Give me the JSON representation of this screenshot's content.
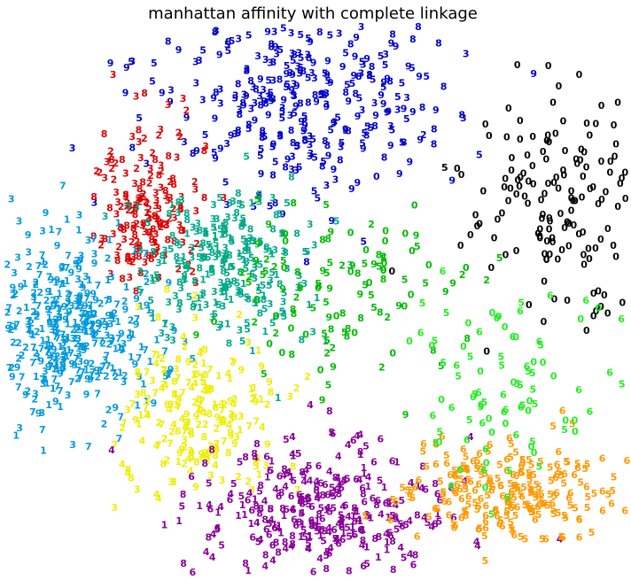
{
  "chart_data": {
    "type": "scatter",
    "title": "manhattan affinity with complete linkage",
    "xlabel": "",
    "ylabel": "",
    "axes_visible": false,
    "grid": false,
    "legend": "none",
    "marker": "digit label (0-9) drawn as colored text",
    "xlim": [
      0,
      712
    ],
    "ylim": [
      0,
      655
    ],
    "clusters": [
      {
        "color": "#000000",
        "digits": [
          "0"
        ],
        "region": {
          "cx": 630,
          "cy": 235,
          "sx": 55,
          "sy": 65
        },
        "approx_points": 150,
        "outliers": [
          [
            570,
            126,
            "0"
          ],
          [
            548,
            157,
            "0"
          ],
          [
            583,
            140,
            "0"
          ],
          [
            498,
            193,
            "5"
          ],
          [
            512,
            194,
            "0"
          ],
          [
            658,
            377,
            "0"
          ],
          [
            678,
            337,
            "0"
          ],
          [
            527,
            269,
            "0"
          ]
        ]
      },
      {
        "color": "#0000cc",
        "digits": [
          "3",
          "9",
          "8",
          "5"
        ],
        "region": {
          "cx": 320,
          "cy": 110,
          "sx": 85,
          "sy": 60
        },
        "approx_points": 330,
        "outliers": [
          [
            455,
            138,
            "5"
          ],
          [
            474,
            156,
            "2"
          ],
          [
            488,
            128,
            "9"
          ],
          [
            462,
            130,
            "9"
          ],
          [
            447,
            200,
            "9"
          ],
          [
            421,
            203,
            "0"
          ],
          [
            393,
            217,
            "9"
          ],
          [
            437,
            168,
            "9"
          ]
        ]
      },
      {
        "color": "#dd0000",
        "digits": [
          "2",
          "3",
          "8"
        ],
        "region": {
          "cx": 160,
          "cy": 240,
          "sx": 32,
          "sy": 45
        },
        "approx_points": 170
      },
      {
        "color": "#0099dd",
        "digits": [
          "7",
          "2",
          "3",
          "9",
          "1"
        ],
        "region": {
          "cx": 75,
          "cy": 375,
          "sx": 52,
          "sy": 50
        },
        "approx_points": 400,
        "outliers": [
          [
            96,
            508,
            "7"
          ],
          [
            33,
            469,
            "7"
          ],
          [
            17,
            441,
            "7"
          ]
        ]
      },
      {
        "color": "#00aa88",
        "digits": [
          "5",
          "8",
          "1",
          "3"
        ],
        "region": {
          "cx": 250,
          "cy": 300,
          "sx": 45,
          "sy": 45
        },
        "approx_points": 260
      },
      {
        "color": "#00bb00",
        "digits": [
          "5",
          "8",
          "0",
          "9",
          "2"
        ],
        "region": {
          "cx": 390,
          "cy": 330,
          "sx": 65,
          "sy": 50
        },
        "approx_points": 110,
        "outliers": [
          [
            480,
            303,
            "0"
          ],
          [
            522,
            306,
            "0"
          ],
          [
            467,
            282,
            "5"
          ]
        ]
      },
      {
        "color": "#eeee00",
        "digits": [
          "1",
          "7",
          "8",
          "2",
          "9",
          "4",
          "3"
        ],
        "region": {
          "cx": 220,
          "cy": 470,
          "sx": 45,
          "sy": 50
        },
        "approx_points": 200
      },
      {
        "color": "#880099",
        "digits": [
          "4",
          "6",
          "5",
          "1",
          "8"
        ],
        "region": {
          "cx": 360,
          "cy": 580,
          "sx": 70,
          "sy": 40
        },
        "approx_points": 320
      },
      {
        "color": "#ff9900",
        "digits": [
          "6",
          "5"
        ],
        "region": {
          "cx": 570,
          "cy": 560,
          "sx": 55,
          "sy": 30
        },
        "approx_points": 230
      },
      {
        "color": "#22ee22",
        "digits": [
          "6",
          "0",
          "5"
        ],
        "region": {
          "cx": 570,
          "cy": 440,
          "sx": 55,
          "sy": 55
        },
        "approx_points": 90
      }
    ]
  }
}
